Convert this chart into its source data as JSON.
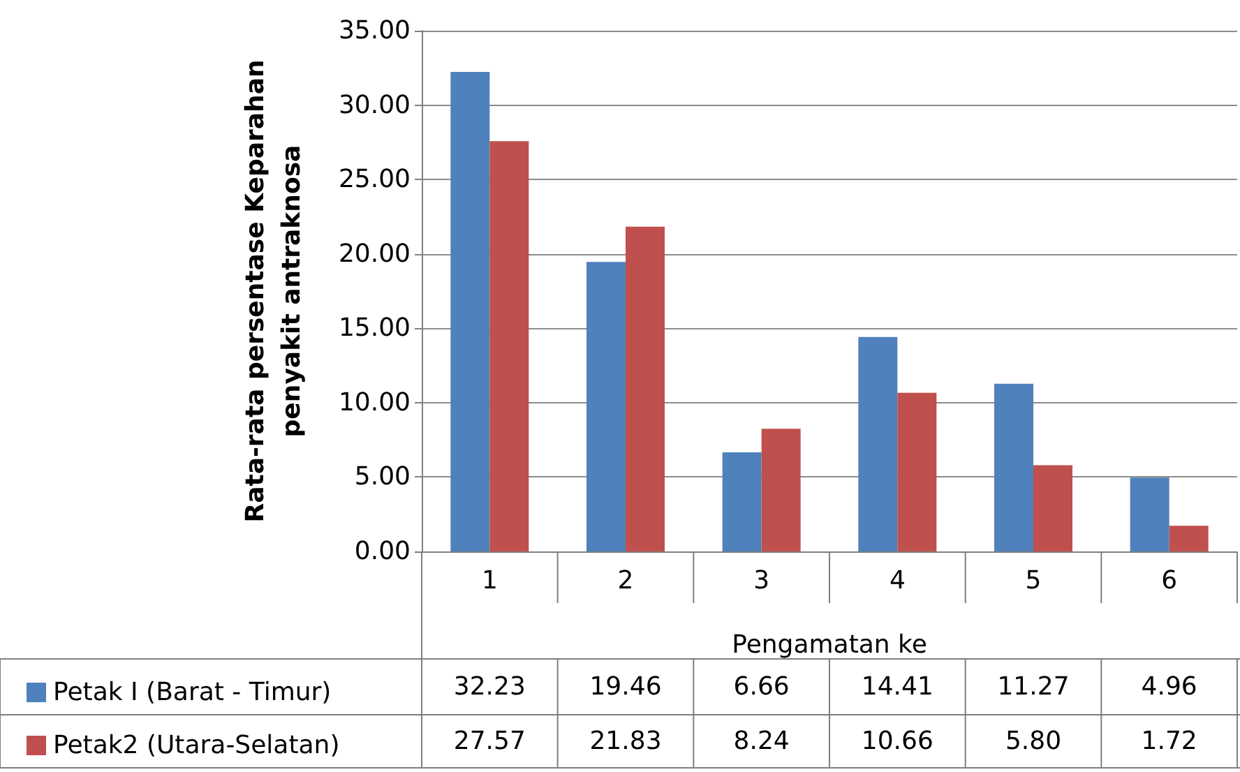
{
  "chart_data": {
    "type": "bar",
    "ylabel": "Rata-rata persentase Keparahan penyakit antraknosa",
    "xlabel": "Pengamatan ke",
    "categories": [
      "1",
      "2",
      "3",
      "4",
      "5",
      "6"
    ],
    "series": [
      {
        "name": "Petak I (Barat - Timur)",
        "color": "#4f81bd",
        "values": [
          32.23,
          19.46,
          6.66,
          14.41,
          11.27,
          4.96
        ],
        "value_labels": [
          "32.23",
          "19.46",
          "6.66",
          "14.41",
          "11.27",
          "4.96"
        ]
      },
      {
        "name": "Petak2 (Utara-Selatan)",
        "color": "#c0504d",
        "values": [
          27.57,
          21.83,
          8.24,
          10.66,
          5.8,
          1.72
        ],
        "value_labels": [
          "27.57",
          "21.83",
          "8.24",
          "10.66",
          "5.80",
          "1.72"
        ]
      }
    ],
    "ylim": [
      0,
      35
    ],
    "yticks": [
      {
        "value": 0,
        "label": "0.00"
      },
      {
        "value": 5,
        "label": "5.00"
      },
      {
        "value": 10,
        "label": "10.00"
      },
      {
        "value": 15,
        "label": "15.00"
      },
      {
        "value": 20,
        "label": "20.00"
      },
      {
        "value": 25,
        "label": "25.00"
      },
      {
        "value": 30,
        "label": "30.00"
      },
      {
        "value": 35,
        "label": "35.00"
      }
    ],
    "grid": "y",
    "legend": "bottom"
  }
}
